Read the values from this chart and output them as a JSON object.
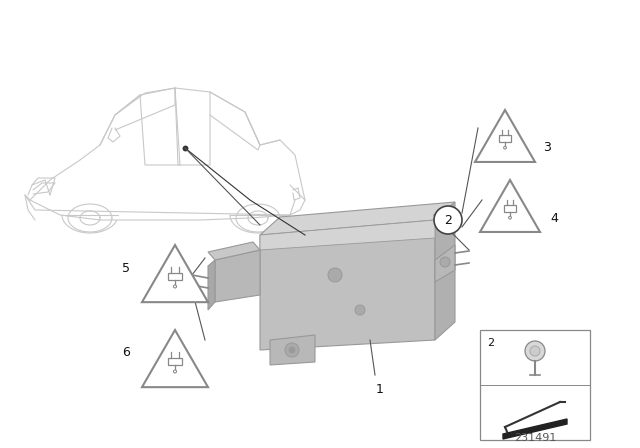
{
  "bg_color": "#ffffff",
  "diagram_number": "231491",
  "line_color": "#aaaaaa",
  "edge_color": "#999999",
  "dark_line": "#333333",
  "hub_face": "#c0c0c0",
  "hub_top": "#d4d4d4",
  "hub_side": "#b0b0b0",
  "hub_dark": "#a0a0a0",
  "tri_color": "#888888",
  "tri_fill": "#ffffff",
  "label_color": "#111111"
}
